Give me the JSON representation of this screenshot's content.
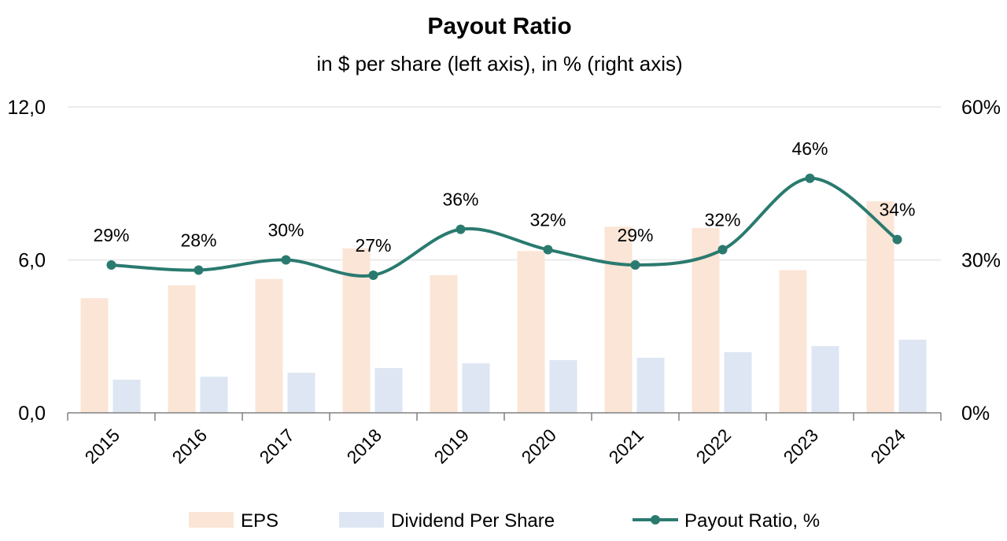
{
  "chart_data": {
    "type": "bar",
    "title": "Payout Ratio",
    "subtitle": "in $ per share (left axis), in % (right axis)",
    "categories": [
      "2015",
      "2016",
      "2017",
      "2018",
      "2019",
      "2020",
      "2021",
      "2022",
      "2023",
      "2024"
    ],
    "series": [
      {
        "name": "EPS",
        "type": "bar",
        "axis": "left",
        "color": "#FBE5D6",
        "values": [
          4.5,
          5.0,
          5.25,
          6.45,
          5.4,
          6.35,
          7.3,
          7.25,
          5.6,
          8.3
        ]
      },
      {
        "name": "Dividend Per Share",
        "type": "bar",
        "axis": "left",
        "color": "#DEE6F3",
        "values": [
          1.3,
          1.42,
          1.57,
          1.76,
          1.94,
          2.07,
          2.16,
          2.38,
          2.62,
          2.87
        ]
      },
      {
        "name": "Payout Ratio, %",
        "type": "line",
        "axis": "right",
        "color": "#2A7A6F",
        "values": [
          29,
          28,
          30,
          27,
          36,
          32,
          29,
          32,
          46,
          34
        ],
        "labels": [
          "29%",
          "28%",
          "30%",
          "27%",
          "36%",
          "32%",
          "29%",
          "32%",
          "46%",
          "34%"
        ]
      }
    ],
    "left_axis": {
      "ylim": [
        0,
        12
      ],
      "ticks": [
        "0,0",
        "6,0",
        "12,0"
      ],
      "tick_values": [
        0,
        6,
        12
      ]
    },
    "right_axis": {
      "ylim": [
        0,
        60
      ],
      "ticks": [
        "0%",
        "30%",
        "60%"
      ],
      "tick_values": [
        0,
        30,
        60
      ]
    },
    "grid": true,
    "legend_position": "bottom"
  }
}
